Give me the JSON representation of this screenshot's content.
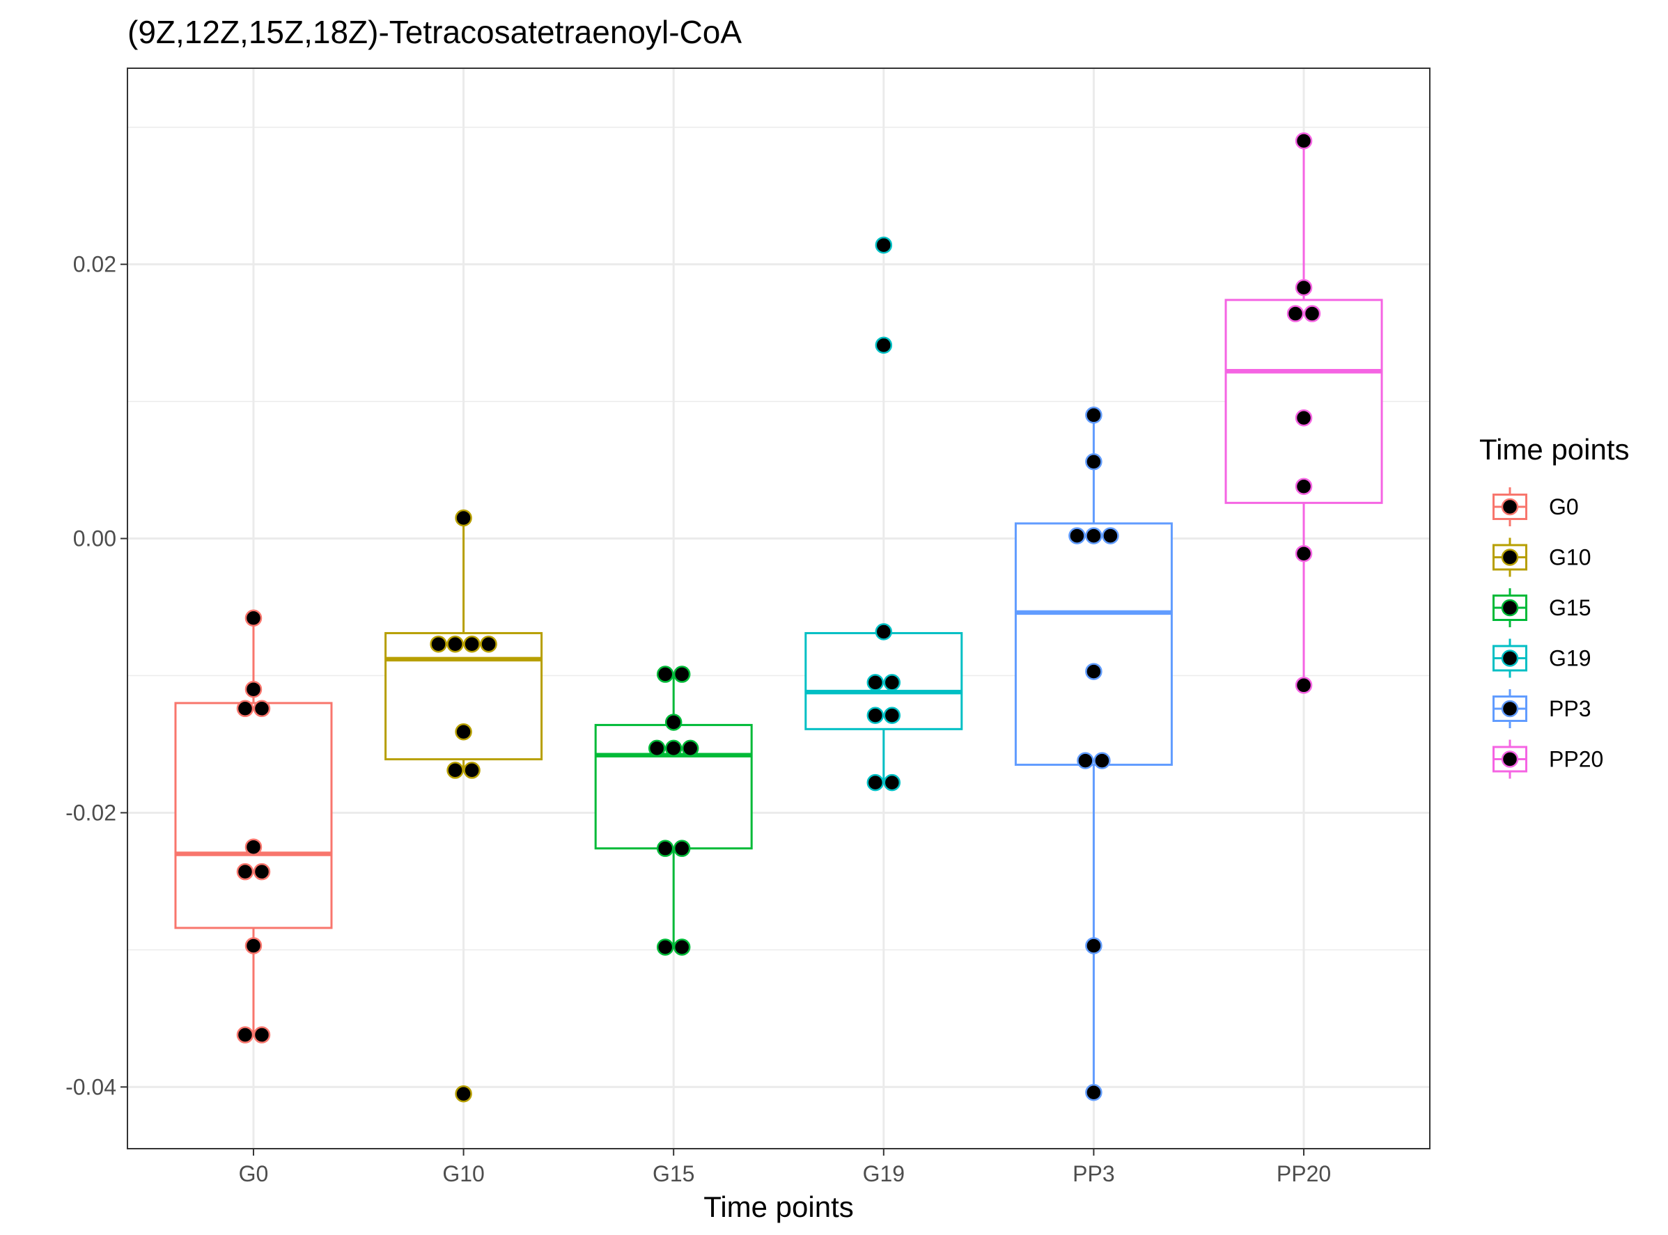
{
  "chart_data": {
    "type": "box",
    "title": "(9Z,12Z,15Z,18Z)-Tetracosatetraenoyl-CoA",
    "xlabel": "Time points",
    "ylabel": "",
    "ylim": [
      -0.0445,
      0.0343
    ],
    "yticks": [
      -0.04,
      -0.02,
      0.0,
      0.02
    ],
    "ytick_labels": [
      "-0.04",
      "-0.02",
      "0.00",
      "0.02"
    ],
    "categories": [
      "G0",
      "G10",
      "G15",
      "G19",
      "PP3",
      "PP20"
    ],
    "grid": true,
    "legend": {
      "title": "Time points",
      "position": "right"
    },
    "colors": [
      "#F8766D",
      "#B79F00",
      "#00BA38",
      "#00BFC4",
      "#619CFF",
      "#F564E3"
    ],
    "point_color": "#000000",
    "boxes": [
      {
        "name": "G0",
        "q1": -0.0284,
        "median": -0.023,
        "q3": -0.012,
        "whisker_low": -0.0362,
        "whisker_high": -0.0058
      },
      {
        "name": "G10",
        "q1": -0.0161,
        "median": -0.0088,
        "q3": -0.0069,
        "whisker_low": -0.0169,
        "whisker_high": 0.0015
      },
      {
        "name": "G15",
        "q1": -0.0226,
        "median": -0.0158,
        "q3": -0.0136,
        "whisker_low": -0.0298,
        "whisker_high": -0.0099
      },
      {
        "name": "G19",
        "q1": -0.0139,
        "median": -0.0112,
        "q3": -0.0069,
        "whisker_low": -0.0178,
        "whisker_high": -0.0068
      },
      {
        "name": "PP3",
        "q1": -0.0165,
        "median": -0.0054,
        "q3": 0.0011,
        "whisker_low": -0.0404,
        "whisker_high": 0.009
      },
      {
        "name": "PP20",
        "q1": 0.0026,
        "median": 0.0122,
        "q3": 0.0174,
        "whisker_low": -0.0107,
        "whisker_high": 0.029
      }
    ],
    "points": [
      {
        "group": "G0",
        "values": [
          -0.0058,
          -0.011,
          -0.0124,
          -0.0124,
          -0.0225,
          -0.0243,
          -0.0243,
          -0.0297,
          -0.0362,
          -0.0362
        ]
      },
      {
        "group": "G10",
        "values": [
          0.0015,
          -0.0077,
          -0.0077,
          -0.0077,
          -0.0077,
          -0.0141,
          -0.0169,
          -0.0169,
          -0.0405
        ]
      },
      {
        "group": "G15",
        "values": [
          -0.0099,
          -0.0099,
          -0.0134,
          -0.0153,
          -0.0153,
          -0.0153,
          -0.0226,
          -0.0226,
          -0.0298,
          -0.0298
        ]
      },
      {
        "group": "G19",
        "values": [
          0.0214,
          0.0141,
          -0.0068,
          -0.0105,
          -0.0105,
          -0.0129,
          -0.0129,
          -0.0178,
          -0.0178
        ]
      },
      {
        "group": "PP3",
        "values": [
          0.009,
          0.0056,
          0.0002,
          0.0002,
          0.0002,
          -0.0097,
          -0.0162,
          -0.0162,
          -0.0297,
          -0.0404
        ]
      },
      {
        "group": "PP20",
        "values": [
          0.029,
          0.0183,
          0.0164,
          0.0164,
          0.0088,
          0.0038,
          -0.0011,
          -0.0107
        ]
      }
    ]
  }
}
